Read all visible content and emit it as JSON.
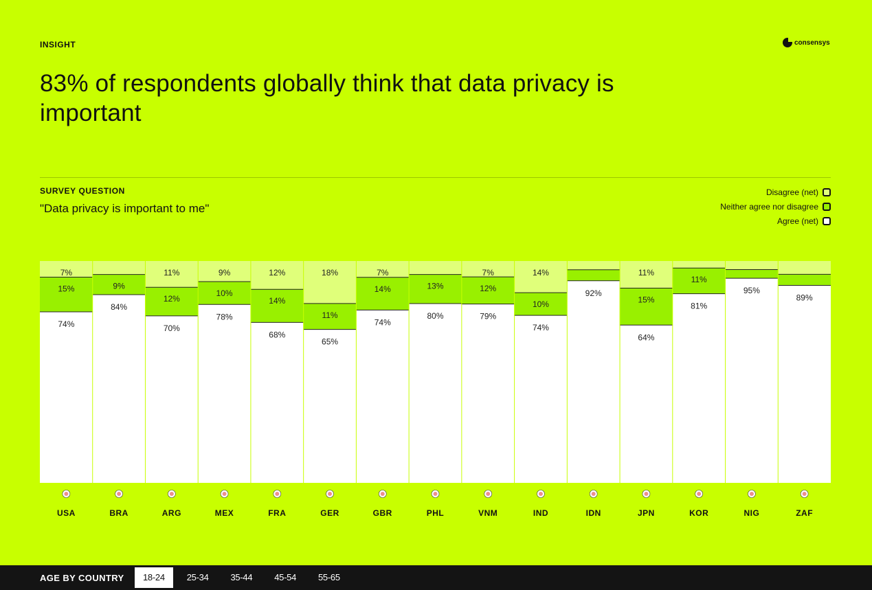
{
  "header": {
    "eyebrow": "INSIGHT",
    "brand": "consensys",
    "title": "83% of respondents globally think that data privacy is important"
  },
  "survey": {
    "label": "SURVEY QUESTION",
    "question": "\"Data privacy is important to me\""
  },
  "legend": [
    {
      "label": "Disagree (net)",
      "color": "#e0ff7a"
    },
    {
      "label": "Neither agree nor disagree",
      "color": "#99f000"
    },
    {
      "label": "Agree (net)",
      "color": "#ffffff"
    }
  ],
  "colors": {
    "background": "#c8ff00",
    "disagree": "#e0ff7a",
    "neither": "#99f000",
    "agree": "#ffffff"
  },
  "chart_data": {
    "type": "bar",
    "stacked": true,
    "orientation": "vertical-100%",
    "categories": [
      "USA",
      "BRA",
      "ARG",
      "MEX",
      "FRA",
      "GER",
      "GBR",
      "PHL",
      "VNM",
      "IND",
      "IDN",
      "JPN",
      "KOR",
      "NIG",
      "ZAF"
    ],
    "flags": [
      "us-flag-icon",
      "brazil-flag-icon",
      "argentina-flag-icon",
      "mexico-flag-icon",
      "france-flag-icon",
      "germany-flag-icon",
      "uk-flag-icon",
      "philippines-flag-icon",
      "vietnam-flag-icon",
      "india-flag-icon",
      "indonesia-flag-icon",
      "japan-flag-icon",
      "korea-flag-icon",
      "nigeria-flag-icon",
      "south-africa-flag-icon"
    ],
    "series": [
      {
        "name": "Disagree (net)",
        "values": [
          7,
          6,
          11,
          9,
          12,
          18,
          7,
          6,
          7,
          14,
          4,
          11,
          3,
          4,
          6
        ],
        "labels": [
          "7%",
          "",
          "11%",
          "9%",
          "12%",
          "18%",
          "7%",
          "",
          "7%",
          "14%",
          "",
          "11%",
          "",
          "",
          ""
        ]
      },
      {
        "name": "Neither agree nor disagree",
        "values": [
          15,
          9,
          12,
          10,
          14,
          11,
          14,
          13,
          12,
          10,
          5,
          15,
          11,
          4,
          5
        ],
        "labels": [
          "15%",
          "9%",
          "12%",
          "10%",
          "14%",
          "11%",
          "14%",
          "13%",
          "12%",
          "10%",
          "",
          "15%",
          "11%",
          "",
          ""
        ]
      },
      {
        "name": "Agree (net)",
        "values": [
          74,
          84,
          70,
          78,
          68,
          65,
          74,
          80,
          79,
          74,
          92,
          64,
          81,
          95,
          89
        ],
        "labels": [
          "74%",
          "84%",
          "70%",
          "78%",
          "68%",
          "65%",
          "74%",
          "80%",
          "79%",
          "74%",
          "92%",
          "64%",
          "81%",
          "95%",
          "89%"
        ]
      }
    ],
    "ylim": [
      0,
      100
    ],
    "grid": false,
    "legend_position": "top-right"
  },
  "footer": {
    "label": "AGE BY COUNTRY",
    "tabs": [
      "18-24",
      "25-34",
      "35-44",
      "45-54",
      "55-65"
    ],
    "active_tab": "18-24"
  }
}
